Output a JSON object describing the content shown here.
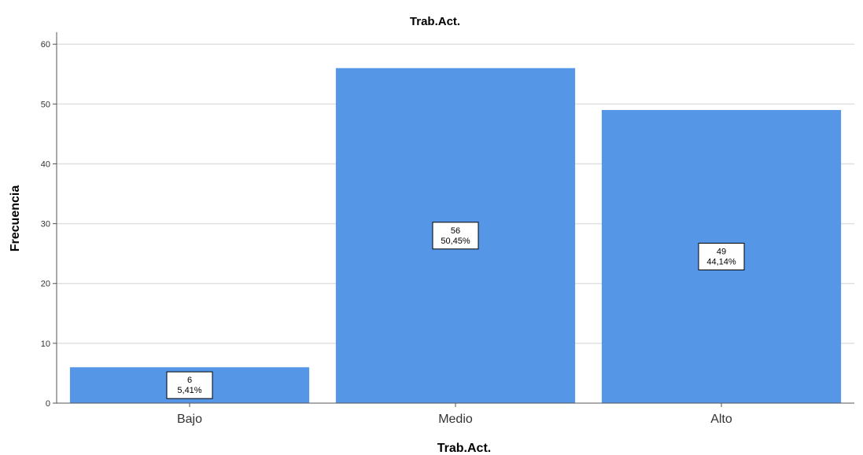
{
  "chart_data": {
    "type": "bar",
    "title": "Trab.Act.",
    "xlabel": "Trab.Act.",
    "ylabel": "Frecuencia",
    "categories": [
      "Bajo",
      "Medio",
      "Alto"
    ],
    "values": [
      6,
      56,
      49
    ],
    "percent_labels": [
      "5,41%",
      "50,45%",
      "44,14%"
    ],
    "ylim": [
      0,
      62
    ],
    "yticks": [
      0,
      10,
      20,
      30,
      40,
      50,
      60
    ],
    "grid": true,
    "bar_color": "#5596e6",
    "grid_color": "#e0e0e0"
  }
}
